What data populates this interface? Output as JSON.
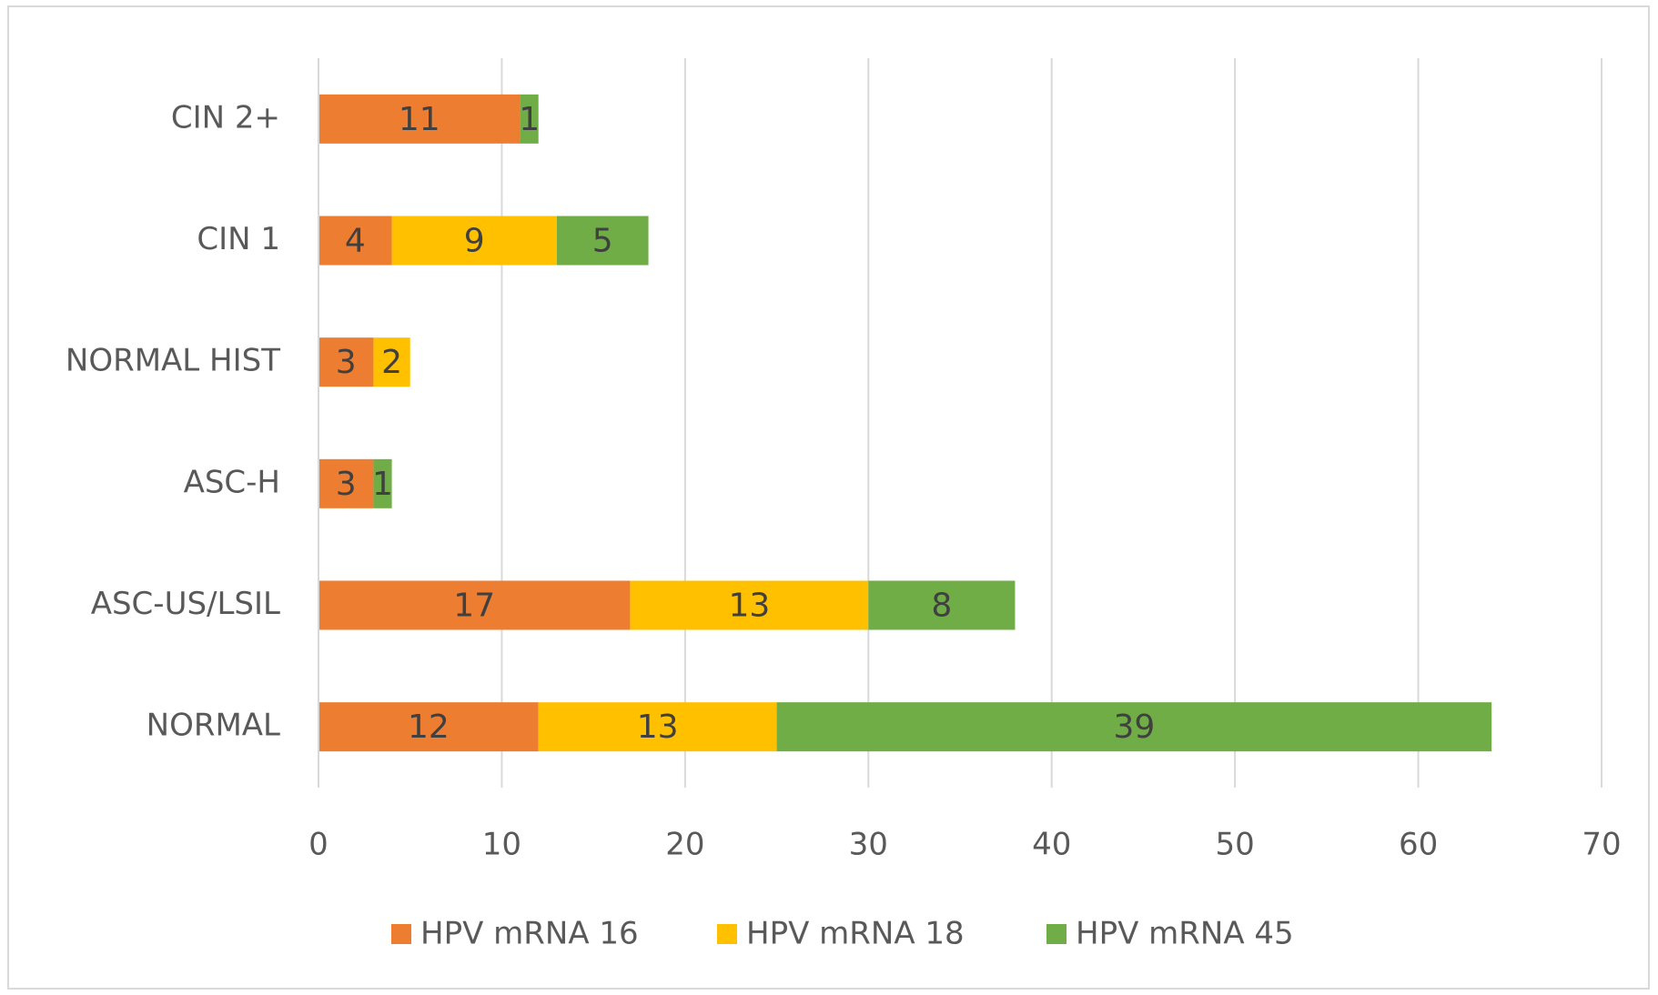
{
  "chart_data": {
    "type": "stacked-bar-horizontal",
    "categories": [
      "NORMAL",
      "ASC-US/LSIL",
      "ASC-H",
      "NORMAL HIST",
      "CIN 1",
      "CIN 2+"
    ],
    "series": [
      {
        "name": "HPV mRNA 16",
        "color": "#ed7d31",
        "values": [
          12,
          17,
          3,
          3,
          4,
          11
        ]
      },
      {
        "name": "HPV mRNA 18",
        "color": "#ffc000",
        "values": [
          13,
          13,
          null,
          2,
          9,
          null
        ]
      },
      {
        "name": "HPV mRNA 45",
        "color": "#70ad47",
        "values": [
          39,
          8,
          1,
          null,
          5,
          1
        ]
      }
    ],
    "xlim": [
      0,
      70
    ],
    "xticks": [
      0,
      10,
      20,
      30,
      40,
      50,
      60,
      70
    ],
    "grid": true,
    "legend": "bottom"
  }
}
